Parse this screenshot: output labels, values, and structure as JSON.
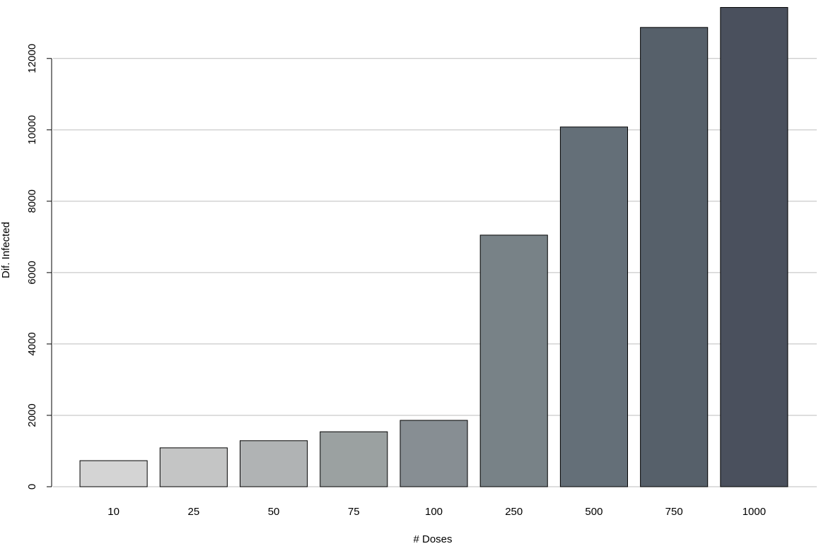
{
  "chart_data": {
    "type": "bar",
    "categories": [
      "10",
      "25",
      "50",
      "75",
      "100",
      "250",
      "500",
      "750",
      "1000"
    ],
    "values": [
      730,
      1090,
      1290,
      1540,
      1860,
      7050,
      10080,
      12870,
      13430
    ],
    "colors": [
      "#d4d4d4",
      "#c4c5c5",
      "#b0b3b4",
      "#9ba1a1",
      "#878e93",
      "#788287",
      "#646f78",
      "#56606a",
      "#4a505d"
    ],
    "xlabel": "# Doses",
    "ylabel": "Dif. Infected",
    "ylim": [
      0,
      13500
    ],
    "yticks": [
      0,
      2000,
      4000,
      6000,
      8000,
      10000,
      12000
    ],
    "grid": true
  }
}
